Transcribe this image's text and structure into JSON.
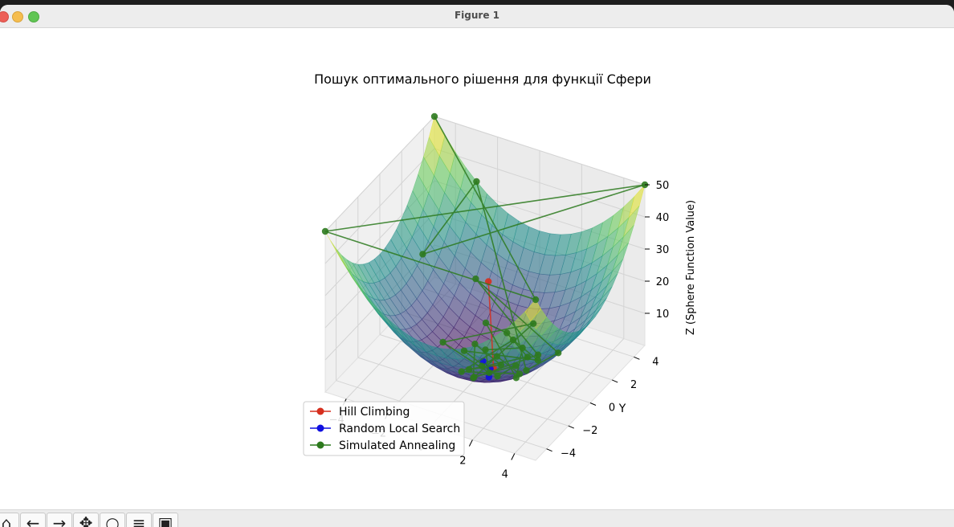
{
  "window": {
    "title": "Figure 1"
  },
  "toolbar": {
    "buttons": [
      {
        "name": "home-icon",
        "glyph": "⌂"
      },
      {
        "name": "back-icon",
        "glyph": "←"
      },
      {
        "name": "forward-icon",
        "glyph": "→"
      },
      {
        "name": "pan-icon",
        "glyph": "✥"
      },
      {
        "name": "zoom-icon",
        "glyph": "○"
      },
      {
        "name": "configure-subplots-icon",
        "glyph": "≡"
      },
      {
        "name": "save-icon",
        "glyph": "▣"
      }
    ]
  },
  "chart_data": {
    "type": "scatter",
    "title": "Пошук оптимального рішення для функції Сфери",
    "xlabel": "X",
    "ylabel": "Y",
    "zlabel": "Z (Sphere Function Value)",
    "xlim": [
      -5,
      5
    ],
    "ylim": [
      -5,
      5
    ],
    "zlim": [
      0,
      50
    ],
    "x_ticks": [
      "−4",
      "−2",
      "0",
      "2",
      "4"
    ],
    "y_ticks": [
      "−4",
      "−2",
      "0",
      "2",
      "4"
    ],
    "z_ticks": [
      "10",
      "20",
      "30",
      "40",
      "50"
    ],
    "surface": "z = x^2 + y^2",
    "colormap": [
      "#440154",
      "#3b528b",
      "#21918c",
      "#5ec962",
      "#fde725"
    ],
    "legend_position": "lower-left",
    "series": [
      {
        "name": "Hill Climbing",
        "color": "#d62f1e",
        "marker": "o",
        "points": [
          [
            -1.5,
            3.2,
            12.5
          ],
          [
            0.3,
            0.2,
            0.13
          ]
        ]
      },
      {
        "name": "Random Local Search",
        "color": "#1010e0",
        "marker": "o",
        "points": [
          [
            0.5,
            -0.6,
            0.6
          ],
          [
            0.2,
            0.1,
            0.05
          ],
          [
            -0.3,
            0.4,
            0.25
          ]
        ]
      },
      {
        "name": "Simulated Annealing",
        "color": "#2d7a1e",
        "marker": "o",
        "points": [
          [
            -5,
            5,
            50
          ],
          [
            5,
            -5,
            50
          ],
          [
            -5,
            -5,
            50
          ],
          [
            5,
            5,
            50
          ],
          [
            -4,
            2,
            20
          ],
          [
            -3,
            5,
            34
          ],
          [
            3,
            -2,
            13
          ],
          [
            4,
            -1,
            17
          ],
          [
            -2,
            3,
            13
          ],
          [
            2,
            1,
            5
          ],
          [
            1,
            -3,
            10
          ],
          [
            -1,
            1,
            2
          ],
          [
            0.5,
            0.5,
            0.5
          ],
          [
            -0.5,
            -0.5,
            0.5
          ],
          [
            1.5,
            1,
            3.25
          ],
          [
            0,
            2,
            4
          ],
          [
            -1,
            2,
            5
          ],
          [
            2,
            -1,
            5
          ],
          [
            1,
            1.5,
            3.25
          ],
          [
            -0.5,
            1,
            1.25
          ],
          [
            0.3,
            -0.2,
            0.13
          ],
          [
            -2,
            0,
            4
          ],
          [
            1,
            2.5,
            7.25
          ],
          [
            0,
            -1,
            1
          ],
          [
            1.2,
            0.5,
            1.7
          ],
          [
            0.8,
            -0.4,
            0.8
          ],
          [
            -1.2,
            0.4,
            1.6
          ],
          [
            2.2,
            0.6,
            5.2
          ],
          [
            0.4,
            1.8,
            3.4
          ],
          [
            -0.6,
            -1,
            1.4
          ],
          [
            1.8,
            -0.3,
            3.3
          ],
          [
            0.1,
            0.9,
            0.82
          ],
          [
            -0.2,
            0.1,
            0.05
          ]
        ]
      }
    ]
  }
}
